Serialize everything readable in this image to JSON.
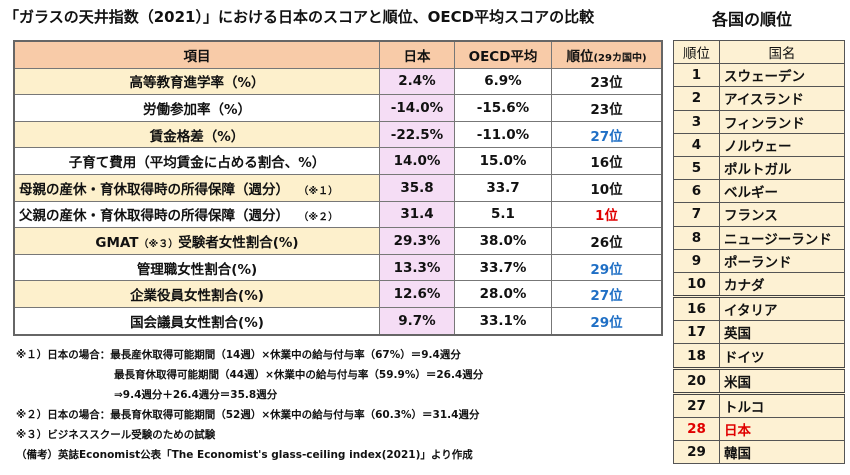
{
  "title": "「ガラスの天井指数（2021）」における日本のスコアと順位、OECD平均スコアの比較",
  "ranking_title": "各国の順位",
  "main_table": {
    "headers": {
      "item": "項目",
      "japan": "日本",
      "oecd": "OECD平均",
      "rank": "順位",
      "rank_note": "(29カ国中)"
    },
    "rows": [
      {
        "item": "高等教育進学率（%）",
        "japan": "2.4%",
        "oecd": "6.9%",
        "rank": "23位",
        "rank_color": "#111111"
      },
      {
        "item": "労働参加率（%）",
        "japan": "-14.0%",
        "oecd": "-15.6%",
        "rank": "23位",
        "rank_color": "#111111"
      },
      {
        "item": "賃金格差（%）",
        "japan": "-22.5%",
        "oecd": "-11.0%",
        "rank": "27位",
        "rank_color": "#1f6fc5"
      },
      {
        "item": "子育て費用（平均賃金に占める割合、%）",
        "japan": "14.0%",
        "oecd": "15.0%",
        "rank": "16位",
        "rank_color": "#111111"
      },
      {
        "item": "母親の産休・育休取得時の所得保障（週分）",
        "note": "（※１）",
        "japan": "35.8",
        "oecd": "33.7",
        "rank": "10位",
        "rank_color": "#111111"
      },
      {
        "item": "父親の産休・育休取得時の所得保障（週分）",
        "note": "（※２）",
        "japan": "31.4",
        "oecd": "5.1",
        "rank": "1位",
        "rank_color": "#e00000"
      },
      {
        "item": "GMAT",
        "note": "（※３）",
        "item_suffix": "受験者女性割合(%)",
        "japan": "29.3%",
        "oecd": "38.0%",
        "rank": "26位",
        "rank_color": "#111111"
      },
      {
        "item": "管理職女性割合(%)",
        "japan": "13.3%",
        "oecd": "33.7%",
        "rank": "29位",
        "rank_color": "#1f6fc5"
      },
      {
        "item": "企業役員女性割合(%)",
        "japan": "12.6%",
        "oecd": "28.0%",
        "rank": "27位",
        "rank_color": "#1f6fc5"
      },
      {
        "item": "国会議員女性割合(%)",
        "japan": "9.7%",
        "oecd": "33.1%",
        "rank": "29位",
        "rank_color": "#1f6fc5"
      }
    ]
  },
  "ranking_table": {
    "headers": {
      "rank": "順位",
      "country": "国名"
    },
    "rows": [
      {
        "rank": "1",
        "country": "スウェーデン"
      },
      {
        "rank": "2",
        "country": "アイスランド"
      },
      {
        "rank": "3",
        "country": "フィンランド"
      },
      {
        "rank": "4",
        "country": "ノルウェー"
      },
      {
        "rank": "5",
        "country": "ポルトガル"
      },
      {
        "rank": "6",
        "country": "ベルギー"
      },
      {
        "rank": "7",
        "country": "フランス"
      },
      {
        "rank": "8",
        "country": "ニュージーランド"
      },
      {
        "rank": "9",
        "country": "ポーランド"
      },
      {
        "rank": "10",
        "country": "カナダ"
      },
      {
        "rank": "16",
        "country": "イタリア"
      },
      {
        "rank": "17",
        "country": "英国"
      },
      {
        "rank": "18",
        "country": "ドイツ"
      },
      {
        "rank": "20",
        "country": "米国"
      },
      {
        "rank": "27",
        "country": "トルコ"
      },
      {
        "rank": "28",
        "country": "日本",
        "highlight": "#e00000"
      },
      {
        "rank": "29",
        "country": "韓国"
      }
    ]
  },
  "notes": [
    "※１）日本の場合：最長産休取得可能期間（14週）×休業中の給与付与率（67%）＝9.4週分",
    "最長育休取得可能期間（44週）×休業中の給与付与率（59.9%）＝26.4週分",
    "⇒9.4週分＋26.4週分＝35.8週分",
    "※２）日本の場合：最長育休取得可能期間（52週）×休業中の給与付与率（60.3%）＝31.4週分",
    "※３）ビジネススクール受験のための試験",
    "（備考）英誌Economist公表「The Economist's glass-ceiling index(2021)」より作成"
  ]
}
